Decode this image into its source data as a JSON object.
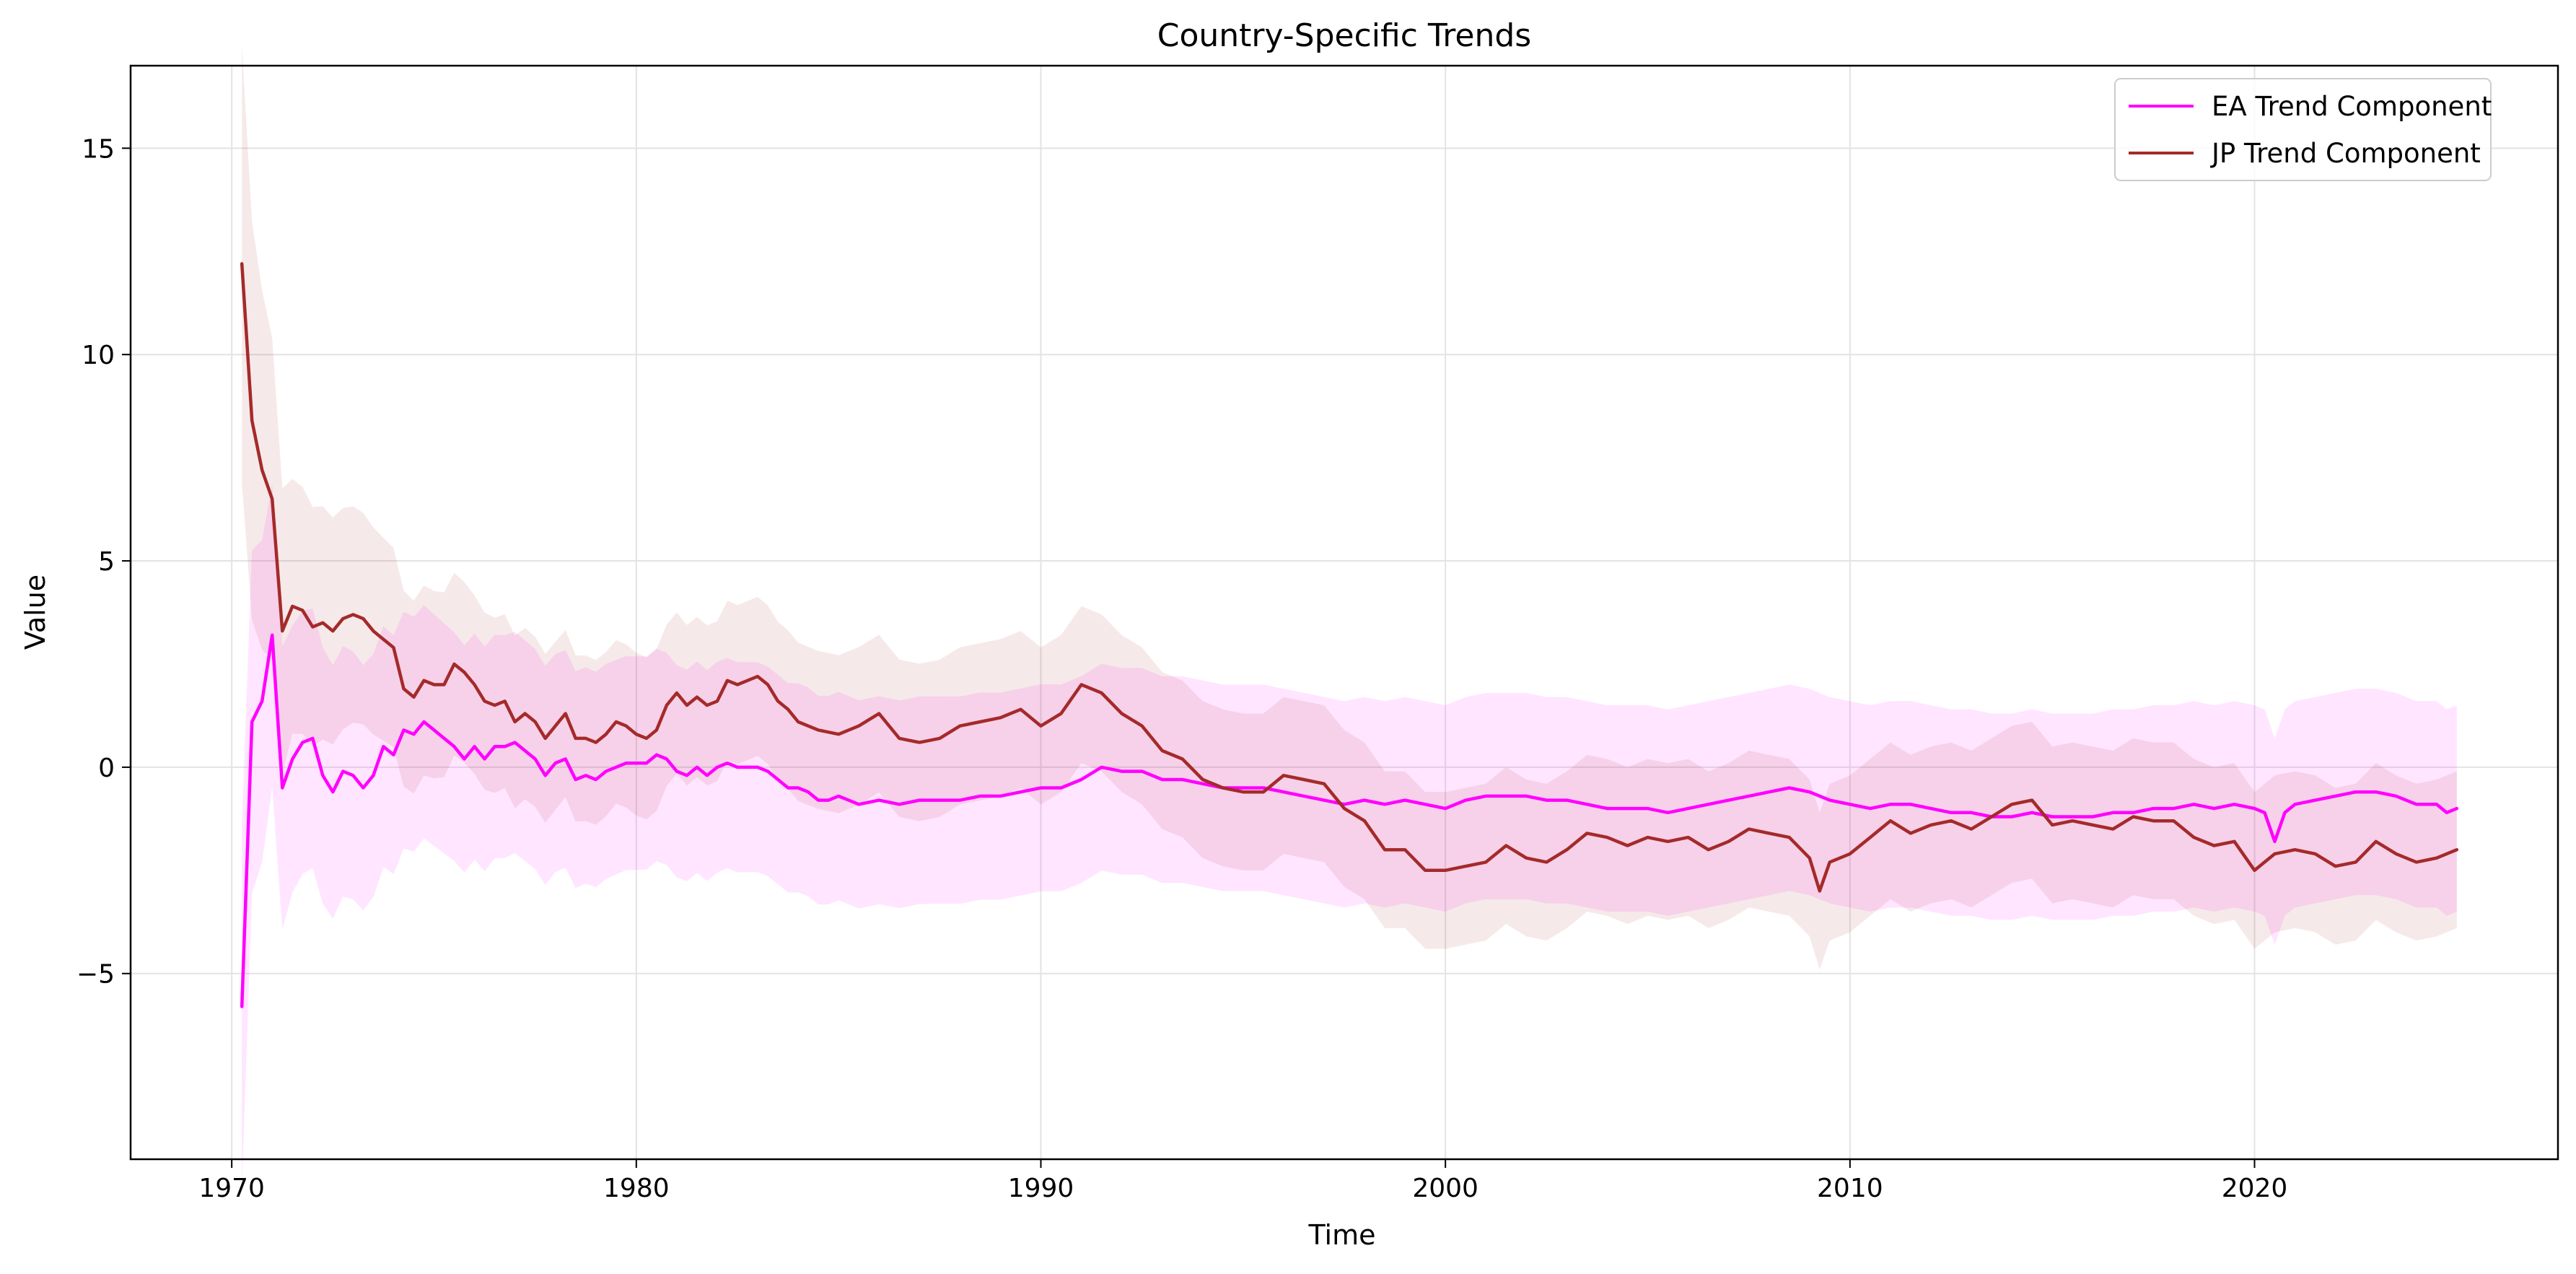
{
  "chart_data": {
    "type": "line",
    "title": "Country-Specific Trends",
    "xlabel": "Time",
    "ylabel": "Value",
    "xlim": [
      1967.5,
      2027.5
    ],
    "ylim": [
      -9.5,
      17
    ],
    "xticks": [
      1970,
      1980,
      1990,
      2000,
      2010,
      2020
    ],
    "yticks": [
      -5,
      0,
      5,
      10,
      15
    ],
    "ytick_labels": [
      "−5",
      "0",
      "5",
      "10",
      "15"
    ],
    "grid": true,
    "legend": "top-right",
    "series": [
      {
        "name": "EA Trend Component",
        "color": "#ff00ff",
        "band_color": "#ff00ff",
        "band_opacity": 0.1,
        "points": [
          [
            1970.25,
            -5.8
          ],
          [
            1970.5,
            1.1
          ],
          [
            1970.75,
            1.6
          ],
          [
            1971.0,
            3.2
          ],
          [
            1971.25,
            -0.5
          ],
          [
            1971.5,
            0.2
          ],
          [
            1971.75,
            0.6
          ],
          [
            1972.0,
            0.7
          ],
          [
            1972.25,
            -0.2
          ],
          [
            1972.5,
            -0.6
          ],
          [
            1972.75,
            -0.1
          ],
          [
            1973.0,
            -0.2
          ],
          [
            1973.25,
            -0.5
          ],
          [
            1973.5,
            -0.2
          ],
          [
            1973.75,
            0.5
          ],
          [
            1974.0,
            0.3
          ],
          [
            1974.25,
            0.9
          ],
          [
            1974.5,
            0.8
          ],
          [
            1974.75,
            1.1
          ],
          [
            1975.0,
            0.9
          ],
          [
            1975.25,
            0.7
          ],
          [
            1975.5,
            0.5
          ],
          [
            1975.75,
            0.2
          ],
          [
            1976.0,
            0.5
          ],
          [
            1976.25,
            0.2
          ],
          [
            1976.5,
            0.5
          ],
          [
            1976.75,
            0.5
          ],
          [
            1977.0,
            0.6
          ],
          [
            1977.25,
            0.4
          ],
          [
            1977.5,
            0.2
          ],
          [
            1977.75,
            -0.2
          ],
          [
            1978.0,
            0.1
          ],
          [
            1978.25,
            0.2
          ],
          [
            1978.5,
            -0.3
          ],
          [
            1978.75,
            -0.2
          ],
          [
            1979.0,
            -0.3
          ],
          [
            1979.25,
            -0.1
          ],
          [
            1979.5,
            0.0
          ],
          [
            1979.75,
            0.1
          ],
          [
            1980.0,
            0.1
          ],
          [
            1980.25,
            0.1
          ],
          [
            1980.5,
            0.3
          ],
          [
            1980.75,
            0.2
          ],
          [
            1981.0,
            -0.1
          ],
          [
            1981.25,
            -0.2
          ],
          [
            1981.5,
            0.0
          ],
          [
            1981.75,
            -0.2
          ],
          [
            1982.0,
            0.0
          ],
          [
            1982.25,
            0.1
          ],
          [
            1982.5,
            0.0
          ],
          [
            1982.75,
            0.0
          ],
          [
            1983.0,
            0.0
          ],
          [
            1983.25,
            -0.1
          ],
          [
            1983.5,
            -0.3
          ],
          [
            1983.75,
            -0.5
          ],
          [
            1984.0,
            -0.5
          ],
          [
            1984.25,
            -0.6
          ],
          [
            1984.5,
            -0.8
          ],
          [
            1984.75,
            -0.8
          ],
          [
            1985.0,
            -0.7
          ],
          [
            1985.5,
            -0.9
          ],
          [
            1986.0,
            -0.8
          ],
          [
            1986.5,
            -0.9
          ],
          [
            1987.0,
            -0.8
          ],
          [
            1987.5,
            -0.8
          ],
          [
            1988.0,
            -0.8
          ],
          [
            1988.5,
            -0.7
          ],
          [
            1989.0,
            -0.7
          ],
          [
            1989.5,
            -0.6
          ],
          [
            1990.0,
            -0.5
          ],
          [
            1990.5,
            -0.5
          ],
          [
            1991.0,
            -0.3
          ],
          [
            1991.5,
            0.0
          ],
          [
            1992.0,
            -0.1
          ],
          [
            1992.5,
            -0.1
          ],
          [
            1993.0,
            -0.3
          ],
          [
            1993.5,
            -0.3
          ],
          [
            1994.0,
            -0.4
          ],
          [
            1994.5,
            -0.5
          ],
          [
            1995.0,
            -0.5
          ],
          [
            1995.5,
            -0.5
          ],
          [
            1996.0,
            -0.6
          ],
          [
            1996.5,
            -0.7
          ],
          [
            1997.0,
            -0.8
          ],
          [
            1997.5,
            -0.9
          ],
          [
            1998.0,
            -0.8
          ],
          [
            1998.5,
            -0.9
          ],
          [
            1999.0,
            -0.8
          ],
          [
            1999.5,
            -0.9
          ],
          [
            2000.0,
            -1.0
          ],
          [
            2000.5,
            -0.8
          ],
          [
            2001.0,
            -0.7
          ],
          [
            2001.5,
            -0.7
          ],
          [
            2002.0,
            -0.7
          ],
          [
            2002.5,
            -0.8
          ],
          [
            2003.0,
            -0.8
          ],
          [
            2003.5,
            -0.9
          ],
          [
            2004.0,
            -1.0
          ],
          [
            2004.5,
            -1.0
          ],
          [
            2005.0,
            -1.0
          ],
          [
            2005.5,
            -1.1
          ],
          [
            2006.0,
            -1.0
          ],
          [
            2006.5,
            -0.9
          ],
          [
            2007.0,
            -0.8
          ],
          [
            2007.5,
            -0.7
          ],
          [
            2008.0,
            -0.6
          ],
          [
            2008.5,
            -0.5
          ],
          [
            2009.0,
            -0.6
          ],
          [
            2009.5,
            -0.8
          ],
          [
            2010.0,
            -0.9
          ],
          [
            2010.5,
            -1.0
          ],
          [
            2011.0,
            -0.9
          ],
          [
            2011.5,
            -0.9
          ],
          [
            2012.0,
            -1.0
          ],
          [
            2012.5,
            -1.1
          ],
          [
            2013.0,
            -1.1
          ],
          [
            2013.5,
            -1.2
          ],
          [
            2014.0,
            -1.2
          ],
          [
            2014.5,
            -1.1
          ],
          [
            2015.0,
            -1.2
          ],
          [
            2015.5,
            -1.2
          ],
          [
            2016.0,
            -1.2
          ],
          [
            2016.5,
            -1.1
          ],
          [
            2017.0,
            -1.1
          ],
          [
            2017.5,
            -1.0
          ],
          [
            2018.0,
            -1.0
          ],
          [
            2018.5,
            -0.9
          ],
          [
            2019.0,
            -1.0
          ],
          [
            2019.5,
            -0.9
          ],
          [
            2020.0,
            -1.0
          ],
          [
            2020.25,
            -1.1
          ],
          [
            2020.5,
            -1.8
          ],
          [
            2020.75,
            -1.1
          ],
          [
            2021.0,
            -0.9
          ],
          [
            2021.5,
            -0.8
          ],
          [
            2022.0,
            -0.7
          ],
          [
            2022.5,
            -0.6
          ],
          [
            2023.0,
            -0.6
          ],
          [
            2023.5,
            -0.7
          ],
          [
            2024.0,
            -0.9
          ],
          [
            2024.5,
            -0.9
          ],
          [
            2024.75,
            -1.1
          ],
          [
            2025.0,
            -1.0
          ]
        ]
      },
      {
        "name": "JP Trend Component",
        "color": "#a52a2a",
        "band_color": "#a52a2a",
        "band_opacity": 0.1,
        "points": [
          [
            1970.25,
            12.2
          ],
          [
            1970.5,
            8.4
          ],
          [
            1970.75,
            7.2
          ],
          [
            1971.0,
            6.5
          ],
          [
            1971.25,
            3.3
          ],
          [
            1971.5,
            3.9
          ],
          [
            1971.75,
            3.8
          ],
          [
            1972.0,
            3.4
          ],
          [
            1972.25,
            3.5
          ],
          [
            1972.5,
            3.3
          ],
          [
            1972.75,
            3.6
          ],
          [
            1973.0,
            3.7
          ],
          [
            1973.25,
            3.6
          ],
          [
            1973.5,
            3.3
          ],
          [
            1973.75,
            3.1
          ],
          [
            1974.0,
            2.9
          ],
          [
            1974.25,
            1.9
          ],
          [
            1974.5,
            1.7
          ],
          [
            1974.75,
            2.1
          ],
          [
            1975.0,
            2.0
          ],
          [
            1975.25,
            2.0
          ],
          [
            1975.5,
            2.5
          ],
          [
            1975.75,
            2.3
          ],
          [
            1976.0,
            2.0
          ],
          [
            1976.25,
            1.6
          ],
          [
            1976.5,
            1.5
          ],
          [
            1976.75,
            1.6
          ],
          [
            1977.0,
            1.1
          ],
          [
            1977.25,
            1.3
          ],
          [
            1977.5,
            1.1
          ],
          [
            1977.75,
            0.7
          ],
          [
            1978.0,
            1.0
          ],
          [
            1978.25,
            1.3
          ],
          [
            1978.5,
            0.7
          ],
          [
            1978.75,
            0.7
          ],
          [
            1979.0,
            0.6
          ],
          [
            1979.25,
            0.8
          ],
          [
            1979.5,
            1.1
          ],
          [
            1979.75,
            1.0
          ],
          [
            1980.0,
            0.8
          ],
          [
            1980.25,
            0.7
          ],
          [
            1980.5,
            0.9
          ],
          [
            1980.75,
            1.5
          ],
          [
            1981.0,
            1.8
          ],
          [
            1981.25,
            1.5
          ],
          [
            1981.5,
            1.7
          ],
          [
            1981.75,
            1.5
          ],
          [
            1982.0,
            1.6
          ],
          [
            1982.25,
            2.1
          ],
          [
            1982.5,
            2.0
          ],
          [
            1982.75,
            2.1
          ],
          [
            1983.0,
            2.2
          ],
          [
            1983.25,
            2.0
          ],
          [
            1983.5,
            1.6
          ],
          [
            1983.75,
            1.4
          ],
          [
            1984.0,
            1.1
          ],
          [
            1984.5,
            0.9
          ],
          [
            1985.0,
            0.8
          ],
          [
            1985.5,
            1.0
          ],
          [
            1986.0,
            1.3
          ],
          [
            1986.5,
            0.7
          ],
          [
            1987.0,
            0.6
          ],
          [
            1987.5,
            0.7
          ],
          [
            1988.0,
            1.0
          ],
          [
            1988.5,
            1.1
          ],
          [
            1989.0,
            1.2
          ],
          [
            1989.5,
            1.4
          ],
          [
            1990.0,
            1.0
          ],
          [
            1990.5,
            1.3
          ],
          [
            1991.0,
            2.0
          ],
          [
            1991.5,
            1.8
          ],
          [
            1992.0,
            1.3
          ],
          [
            1992.5,
            1.0
          ],
          [
            1993.0,
            0.4
          ],
          [
            1993.5,
            0.2
          ],
          [
            1994.0,
            -0.3
          ],
          [
            1994.5,
            -0.5
          ],
          [
            1995.0,
            -0.6
          ],
          [
            1995.5,
            -0.6
          ],
          [
            1996.0,
            -0.2
          ],
          [
            1996.5,
            -0.3
          ],
          [
            1997.0,
            -0.4
          ],
          [
            1997.5,
            -1.0
          ],
          [
            1998.0,
            -1.3
          ],
          [
            1998.5,
            -2.0
          ],
          [
            1999.0,
            -2.0
          ],
          [
            1999.5,
            -2.5
          ],
          [
            2000.0,
            -2.5
          ],
          [
            2000.5,
            -2.4
          ],
          [
            2001.0,
            -2.3
          ],
          [
            2001.5,
            -1.9
          ],
          [
            2002.0,
            -2.2
          ],
          [
            2002.5,
            -2.3
          ],
          [
            2003.0,
            -2.0
          ],
          [
            2003.5,
            -1.6
          ],
          [
            2004.0,
            -1.7
          ],
          [
            2004.5,
            -1.9
          ],
          [
            2005.0,
            -1.7
          ],
          [
            2005.5,
            -1.8
          ],
          [
            2006.0,
            -1.7
          ],
          [
            2006.5,
            -2.0
          ],
          [
            2007.0,
            -1.8
          ],
          [
            2007.5,
            -1.5
          ],
          [
            2008.0,
            -1.6
          ],
          [
            2008.5,
            -1.7
          ],
          [
            2009.0,
            -2.2
          ],
          [
            2009.25,
            -3.0
          ],
          [
            2009.5,
            -2.3
          ],
          [
            2010.0,
            -2.1
          ],
          [
            2010.5,
            -1.7
          ],
          [
            2011.0,
            -1.3
          ],
          [
            2011.5,
            -1.6
          ],
          [
            2012.0,
            -1.4
          ],
          [
            2012.5,
            -1.3
          ],
          [
            2013.0,
            -1.5
          ],
          [
            2013.5,
            -1.2
          ],
          [
            2014.0,
            -0.9
          ],
          [
            2014.5,
            -0.8
          ],
          [
            2015.0,
            -1.4
          ],
          [
            2015.5,
            -1.3
          ],
          [
            2016.0,
            -1.4
          ],
          [
            2016.5,
            -1.5
          ],
          [
            2017.0,
            -1.2
          ],
          [
            2017.5,
            -1.3
          ],
          [
            2018.0,
            -1.3
          ],
          [
            2018.5,
            -1.7
          ],
          [
            2019.0,
            -1.9
          ],
          [
            2019.5,
            -1.8
          ],
          [
            2020.0,
            -2.5
          ],
          [
            2020.5,
            -2.1
          ],
          [
            2021.0,
            -2.0
          ],
          [
            2021.5,
            -2.1
          ],
          [
            2022.0,
            -2.4
          ],
          [
            2022.5,
            -2.3
          ],
          [
            2023.0,
            -1.8
          ],
          [
            2023.5,
            -2.1
          ],
          [
            2024.0,
            -2.3
          ],
          [
            2024.5,
            -2.2
          ],
          [
            2025.0,
            -2.0
          ]
        ]
      }
    ]
  }
}
